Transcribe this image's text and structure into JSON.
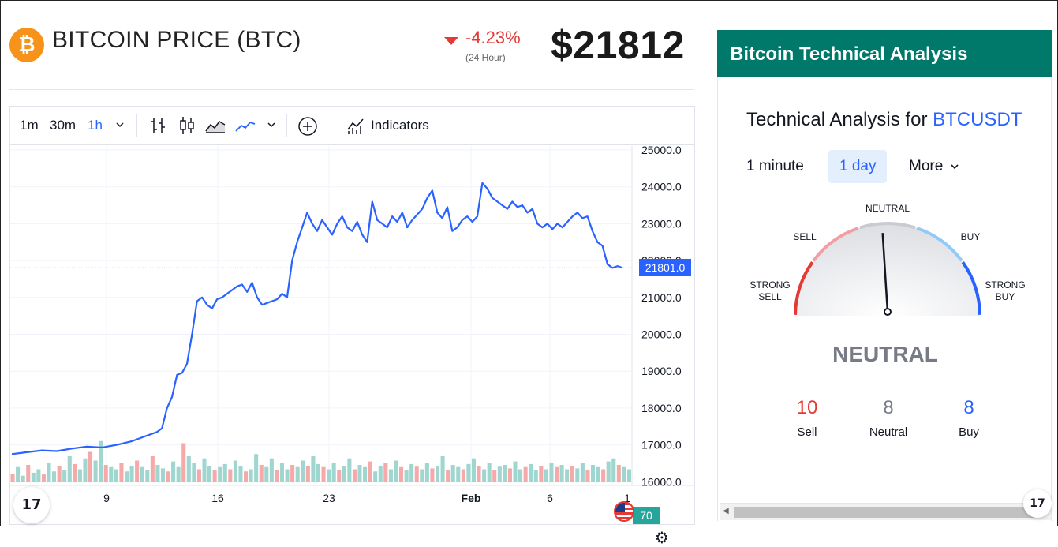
{
  "header": {
    "coin_symbol": "₿",
    "title": "BITCOIN PRICE (BTC)",
    "change_pct": "-4.23%",
    "change_period": "(24 Hour)",
    "price": "$21812",
    "change_color": "#e53935"
  },
  "chart_toolbar": {
    "intervals": [
      "1m",
      "30m",
      "1h"
    ],
    "active_interval": "1h",
    "indicators_label": "Indicators"
  },
  "chart_data": {
    "type": "line",
    "ylim": [
      16400,
      25000
    ],
    "y_ticks": [
      "25000.0",
      "24000.0",
      "23000.0",
      "22000.0",
      "21000.0",
      "20000.0",
      "19000.0",
      "18000.0",
      "17000.0",
      "16000.0"
    ],
    "x_ticks": [
      "9",
      "16",
      "23",
      "Feb",
      "6",
      "1"
    ],
    "last_price_label": "21801.0",
    "last_price": 21801,
    "volume_label": "70",
    "series": [
      {
        "color": "#2962ff",
        "points": [
          [
            0,
            16750
          ],
          [
            3,
            16800
          ],
          [
            6,
            16850
          ],
          [
            9,
            16830
          ],
          [
            12,
            16900
          ],
          [
            15,
            16950
          ],
          [
            18,
            16930
          ],
          [
            21,
            17000
          ],
          [
            24,
            17100
          ],
          [
            27,
            17250
          ],
          [
            29,
            17350
          ],
          [
            30,
            17450
          ],
          [
            31,
            18000
          ],
          [
            32,
            18300
          ],
          [
            33,
            18900
          ],
          [
            34,
            18950
          ],
          [
            35,
            19200
          ],
          [
            36,
            20000
          ],
          [
            37,
            20900
          ],
          [
            38,
            21000
          ],
          [
            39,
            20800
          ],
          [
            40,
            20700
          ],
          [
            41,
            20950
          ],
          [
            42,
            21000
          ],
          [
            43,
            21100
          ],
          [
            44,
            21200
          ],
          [
            45,
            21300
          ],
          [
            46,
            21350
          ],
          [
            47,
            21150
          ],
          [
            48,
            21400
          ],
          [
            49,
            21000
          ],
          [
            50,
            20800
          ],
          [
            51,
            20850
          ],
          [
            52,
            20900
          ],
          [
            53,
            20950
          ],
          [
            54,
            21100
          ],
          [
            55,
            21000
          ],
          [
            56,
            22000
          ],
          [
            57,
            22500
          ],
          [
            58,
            22900
          ],
          [
            59,
            23300
          ],
          [
            60,
            23000
          ],
          [
            61,
            22800
          ],
          [
            62,
            23100
          ],
          [
            63,
            22900
          ],
          [
            64,
            22700
          ],
          [
            65,
            23000
          ],
          [
            66,
            23200
          ],
          [
            67,
            22900
          ],
          [
            68,
            22800
          ],
          [
            69,
            23050
          ],
          [
            70,
            22700
          ],
          [
            71,
            22500
          ],
          [
            72,
            23600
          ],
          [
            73,
            23100
          ],
          [
            74,
            23000
          ],
          [
            75,
            22900
          ],
          [
            76,
            23200
          ],
          [
            77,
            23050
          ],
          [
            78,
            23300
          ],
          [
            79,
            22900
          ],
          [
            80,
            23100
          ],
          [
            81,
            23250
          ],
          [
            82,
            23400
          ],
          [
            83,
            23700
          ],
          [
            84,
            23900
          ],
          [
            85,
            23300
          ],
          [
            86,
            23150
          ],
          [
            87,
            23450
          ],
          [
            88,
            22800
          ],
          [
            89,
            22900
          ],
          [
            90,
            23100
          ],
          [
            91,
            23200
          ],
          [
            92,
            23050
          ],
          [
            93,
            23200
          ],
          [
            94,
            24100
          ],
          [
            95,
            23950
          ],
          [
            96,
            23700
          ],
          [
            97,
            23600
          ],
          [
            98,
            23500
          ],
          [
            99,
            23400
          ],
          [
            100,
            23600
          ],
          [
            101,
            23450
          ],
          [
            102,
            23500
          ],
          [
            103,
            23300
          ],
          [
            104,
            23400
          ],
          [
            105,
            23000
          ],
          [
            106,
            22900
          ],
          [
            107,
            23000
          ],
          [
            108,
            22850
          ],
          [
            109,
            23000
          ],
          [
            110,
            22900
          ],
          [
            111,
            23050
          ],
          [
            112,
            23200
          ],
          [
            113,
            23300
          ],
          [
            114,
            23150
          ],
          [
            115,
            23200
          ],
          [
            116,
            22800
          ],
          [
            117,
            22500
          ],
          [
            118,
            22400
          ],
          [
            119,
            21900
          ],
          [
            120,
            21800
          ],
          [
            121,
            21850
          ],
          [
            122,
            21801
          ]
        ]
      }
    ],
    "volume": [
      20,
      35,
      15,
      40,
      22,
      30,
      18,
      45,
      25,
      38,
      28,
      60,
      42,
      30,
      55,
      70,
      50,
      95,
      40,
      35,
      30,
      45,
      25,
      38,
      50,
      35,
      28,
      60,
      40,
      32,
      25,
      48,
      35,
      90,
      60,
      45,
      30,
      55,
      38,
      28,
      35,
      42,
      30,
      50,
      38,
      25,
      30,
      65,
      40,
      35,
      55,
      28,
      45,
      30,
      40,
      35,
      50,
      38,
      60,
      42,
      35,
      30,
      45,
      28,
      38,
      55,
      30,
      40,
      35,
      48,
      25,
      38,
      45,
      30,
      50,
      35,
      28,
      42,
      36,
      30,
      45,
      32,
      38,
      60,
      28,
      40,
      35,
      30,
      42,
      55,
      38,
      30,
      45,
      28,
      36,
      40,
      32,
      48,
      30,
      35,
      42,
      28,
      38,
      30,
      45,
      35,
      40,
      30,
      38,
      32,
      45,
      28,
      40,
      35,
      30,
      48,
      55,
      40,
      35,
      30
    ]
  },
  "ta": {
    "header_title": "Bitcoin Technical Analysis",
    "title_prefix": "Technical Analysis for ",
    "symbol": "BTCUSDT",
    "timeframes": [
      "1 minute",
      "1 day",
      "More"
    ],
    "active_timeframe": "1 day",
    "gauge_labels": {
      "neutral": "NEUTRAL",
      "sell": "SELL",
      "buy": "BUY",
      "strong_sell_1": "STRONG",
      "strong_sell_2": "SELL",
      "strong_buy_1": "STRONG",
      "strong_buy_2": "BUY"
    },
    "gauge_value": 0.48,
    "result": "NEUTRAL",
    "counts": [
      {
        "num": "10",
        "label": "Sell",
        "color": "#e53935"
      },
      {
        "num": "8",
        "label": "Neutral",
        "color": "#787b86"
      },
      {
        "num": "8",
        "label": "Buy",
        "color": "#2962ff"
      }
    ],
    "tv_logo": "17"
  }
}
